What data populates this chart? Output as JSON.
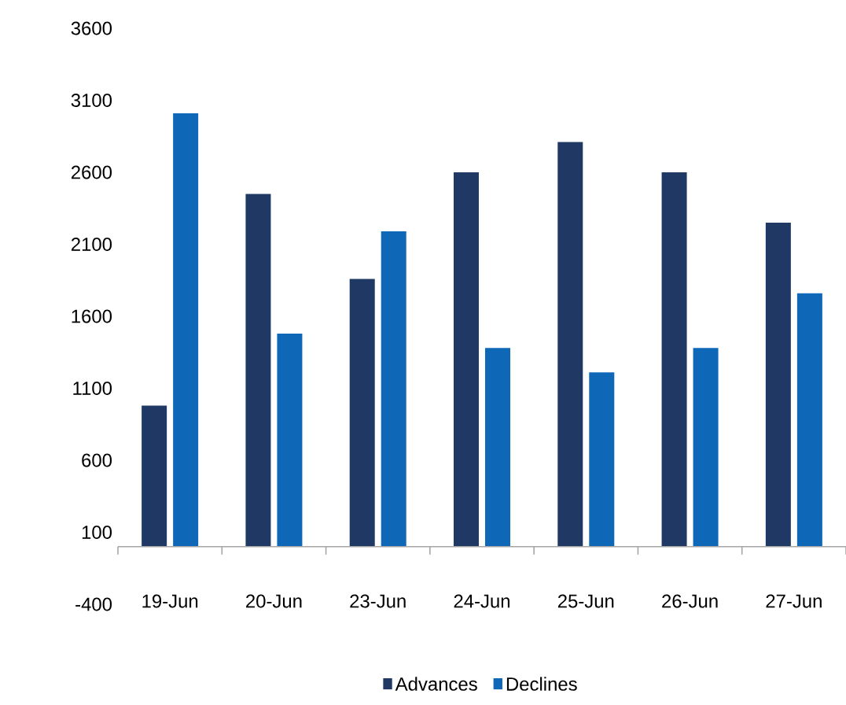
{
  "chart_data": {
    "type": "bar",
    "categories": [
      "19-Jun",
      "20-Jun",
      "23-Jun",
      "24-Jun",
      "25-Jun",
      "26-Jun",
      "27-Jun"
    ],
    "series": [
      {
        "name": "Advances",
        "color": "#1f3864",
        "values": [
          980,
          2450,
          1860,
          2600,
          2810,
          2600,
          2250
        ]
      },
      {
        "name": "Declines",
        "color": "#0f67b8",
        "values": [
          3010,
          1480,
          2190,
          1380,
          1210,
          1380,
          1760
        ]
      }
    ],
    "ylim": [
      -400,
      3600
    ],
    "yticks": [
      -400,
      100,
      600,
      1100,
      1600,
      2100,
      2600,
      3100,
      3600
    ],
    "legend": "bottom"
  }
}
